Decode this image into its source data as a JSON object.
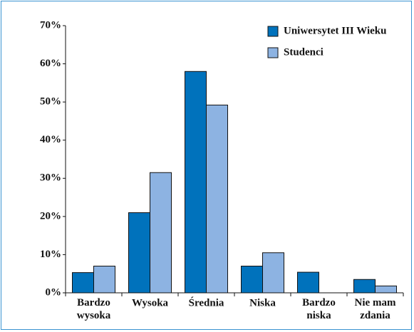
{
  "chart_data": {
    "type": "bar",
    "categories": [
      "Bardzo wysoka",
      "Wysoka",
      "Średnia",
      "Niska",
      "Bardzo niska",
      "Nie mam zdania"
    ],
    "series": [
      {
        "name": "Uniwersytet III Wieku",
        "color": "#0072bc",
        "values": [
          5.3,
          21,
          58,
          7,
          5.4,
          3.5
        ]
      },
      {
        "name": "Studenci",
        "color": "#8db3e2",
        "values": [
          7,
          31.5,
          49.2,
          10.5,
          null,
          1.8
        ]
      }
    ],
    "ylim": [
      0,
      70
    ],
    "yticks": [
      {
        "value": 0,
        "label": "0%"
      },
      {
        "value": 10,
        "label": "10%"
      },
      {
        "value": 20,
        "label": "20%"
      },
      {
        "value": 30,
        "label": "30%"
      },
      {
        "value": 40,
        "label": "40%"
      },
      {
        "value": 50,
        "label": "50%"
      },
      {
        "value": 60,
        "label": "60%"
      },
      {
        "value": 70,
        "label": "70%"
      }
    ],
    "legend": "top-right"
  }
}
